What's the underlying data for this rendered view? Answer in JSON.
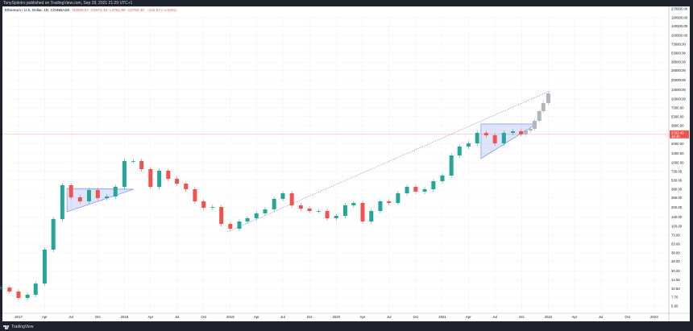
{
  "publisher_line": "TonySpilotro published on TradingView.com, Sep 29, 2021 21:29 UTC+1",
  "legend": {
    "symbol": "Ethereum / U.S. Dollar, 1D, COINBASE",
    "open": "O2926.27",
    "high": "H2971.16",
    "low": "L2781.99",
    "close": "C2792.40",
    "change": "−132.67 (−4.54%)"
  },
  "footer": {
    "brand": "TradingView"
  },
  "colors": {
    "up": "#26a69a",
    "down": "#ef5350",
    "projection": "#b2b5be",
    "drawing": "#7b93f0",
    "price_line": "#ef5350"
  },
  "chart_data": {
    "type": "candlestick",
    "scale": "log",
    "currency": "USD",
    "grid": true,
    "last_price": {
      "value": "2792.40",
      "countdown": "1d 4h"
    },
    "y_ticks": [
      "270000.00",
      "190000.00",
      "140000.00",
      "100000.00",
      "73000.00",
      "53000.00",
      "38000.00",
      "28000.00",
      "20000.00",
      "14000.00",
      "10000.00",
      "7300.00",
      "5300.00",
      "3800.00",
      "2000.00",
      "1400.00",
      "1000.00",
      "730.00",
      "530.00",
      "380.00",
      "280.00",
      "200.00",
      "140.00",
      "100.00",
      "73.00",
      "53.00",
      "38.00",
      "28.00",
      "20.00",
      "14.50",
      "10.50",
      "7.70",
      "5.60"
    ],
    "x_ticks": [
      {
        "label": "2017",
        "date": "2017-01-01"
      },
      {
        "label": "Apr",
        "date": "2017-04-01"
      },
      {
        "label": "Jul",
        "date": "2017-07-01"
      },
      {
        "label": "Oct",
        "date": "2017-10-01"
      },
      {
        "label": "2018",
        "date": "2018-01-01"
      },
      {
        "label": "Apr",
        "date": "2018-04-01"
      },
      {
        "label": "Jul",
        "date": "2018-07-01"
      },
      {
        "label": "Oct",
        "date": "2018-10-01"
      },
      {
        "label": "2019",
        "date": "2019-01-01"
      },
      {
        "label": "Apr",
        "date": "2019-04-01"
      },
      {
        "label": "Jul",
        "date": "2019-07-01"
      },
      {
        "label": "Oct",
        "date": "2019-10-01"
      },
      {
        "label": "2020",
        "date": "2020-01-01"
      },
      {
        "label": "Apr",
        "date": "2020-04-01"
      },
      {
        "label": "Jul",
        "date": "2020-07-01"
      },
      {
        "label": "Oct",
        "date": "2020-10-01"
      },
      {
        "label": "2021",
        "date": "2021-01-01"
      },
      {
        "label": "Apr",
        "date": "2021-04-01"
      },
      {
        "label": "Jul",
        "date": "2021-07-01"
      },
      {
        "label": "Oct",
        "date": "2021-10-01"
      },
      {
        "label": "2022",
        "date": "2022-01-01"
      },
      {
        "label": "Apr",
        "date": "2022-04-01"
      },
      {
        "label": "Jul",
        "date": "2022-07-01"
      },
      {
        "label": "Oct",
        "date": "2022-10-01"
      },
      {
        "label": "2023",
        "date": "2023-01-01"
      }
    ],
    "series": [
      {
        "date": "2016-11-01",
        "close": 10.9
      },
      {
        "date": "2016-12-01",
        "close": 9.44
      },
      {
        "date": "2017-01-01",
        "close": 7.48
      },
      {
        "date": "2017-02-01",
        "close": 8.41
      },
      {
        "date": "2017-03-01",
        "close": 12.6
      },
      {
        "date": "2017-04-01",
        "close": 43
      },
      {
        "date": "2017-05-01",
        "close": 130
      },
      {
        "date": "2017-06-01",
        "close": 443
      },
      {
        "date": "2017-07-01",
        "close": 286
      },
      {
        "date": "2017-08-01",
        "close": 247
      },
      {
        "date": "2017-09-01",
        "close": 372
      },
      {
        "date": "2017-10-01",
        "close": 278
      },
      {
        "date": "2017-11-01",
        "close": 294
      },
      {
        "date": "2017-12-01",
        "close": 418
      },
      {
        "date": "2018-01-01",
        "close": 1062
      },
      {
        "date": "2018-02-01",
        "close": 1062
      },
      {
        "date": "2018-03-01",
        "close": 793
      },
      {
        "date": "2018-04-01",
        "close": 418
      },
      {
        "date": "2018-05-01",
        "close": 748
      },
      {
        "date": "2018-06-01",
        "close": 558
      },
      {
        "date": "2018-07-01",
        "close": 469
      },
      {
        "date": "2018-08-01",
        "close": 383
      },
      {
        "date": "2018-09-01",
        "close": 247
      },
      {
        "date": "2018-10-01",
        "close": 196
      },
      {
        "date": "2018-11-01",
        "close": 201
      },
      {
        "date": "2018-12-01",
        "close": 109
      },
      {
        "date": "2019-01-01",
        "close": 91.8
      },
      {
        "date": "2019-02-01",
        "close": 119
      },
      {
        "date": "2019-03-01",
        "close": 134
      },
      {
        "date": "2019-04-01",
        "close": 160
      },
      {
        "date": "2019-05-01",
        "close": 185
      },
      {
        "date": "2019-06-01",
        "close": 270
      },
      {
        "date": "2019-07-01",
        "close": 331
      },
      {
        "date": "2019-08-01",
        "close": 214
      },
      {
        "date": "2019-09-01",
        "close": 190
      },
      {
        "date": "2019-10-01",
        "close": 174
      },
      {
        "date": "2019-11-01",
        "close": 174
      },
      {
        "date": "2019-12-01",
        "close": 134
      },
      {
        "date": "2020-01-01",
        "close": 146
      },
      {
        "date": "2020-02-01",
        "close": 214
      },
      {
        "date": "2020-03-01",
        "close": 233
      },
      {
        "date": "2020-04-01",
        "close": 119
      },
      {
        "date": "2020-05-01",
        "close": 174
      },
      {
        "date": "2020-06-01",
        "close": 247
      },
      {
        "date": "2020-07-01",
        "close": 233
      },
      {
        "date": "2020-08-01",
        "close": 331
      },
      {
        "date": "2020-09-01",
        "close": 418
      },
      {
        "date": "2020-10-01",
        "close": 351
      },
      {
        "date": "2020-11-01",
        "close": 383
      },
      {
        "date": "2020-12-01",
        "close": 512
      },
      {
        "date": "2021-01-01",
        "close": 628
      },
      {
        "date": "2021-02-01",
        "close": 1300
      },
      {
        "date": "2021-03-01",
        "close": 1795
      },
      {
        "date": "2021-04-01",
        "close": 2014
      },
      {
        "date": "2021-05-01",
        "close": 2944
      },
      {
        "date": "2021-06-01",
        "close": 2698
      },
      {
        "date": "2021-07-01",
        "close": 2014
      },
      {
        "date": "2021-08-01",
        "close": 2944
      },
      {
        "date": "2021-09-01",
        "close": 3119
      },
      {
        "date": "2021-09-29",
        "close": 2792.4
      }
    ],
    "projection": [
      {
        "date": "2021-10-15",
        "close": 3214
      },
      {
        "date": "2021-11-01",
        "close": 3404
      },
      {
        "date": "2021-11-15",
        "close": 4560
      },
      {
        "date": "2021-12-01",
        "close": 6471
      },
      {
        "date": "2021-12-15",
        "close": 8650
      },
      {
        "date": "2022-01-01",
        "close": 12270
      }
    ],
    "drawings": {
      "triangles": [
        [
          {
            "date": "2017-06-17",
            "price": 394
          },
          {
            "date": "2018-02-02",
            "price": 383
          },
          {
            "date": "2017-06-17",
            "price": 169
          }
        ],
        [
          {
            "date": "2021-05-14",
            "price": 4055
          },
          {
            "date": "2021-11-20",
            "price": 4055
          },
          {
            "date": "2021-05-14",
            "price": 1159
          }
        ]
      ],
      "trendline": [
        {
          "date": "2018-12-22",
          "price": 81.6
        },
        {
          "date": "2022-01-06",
          "price": 13400
        }
      ]
    }
  }
}
